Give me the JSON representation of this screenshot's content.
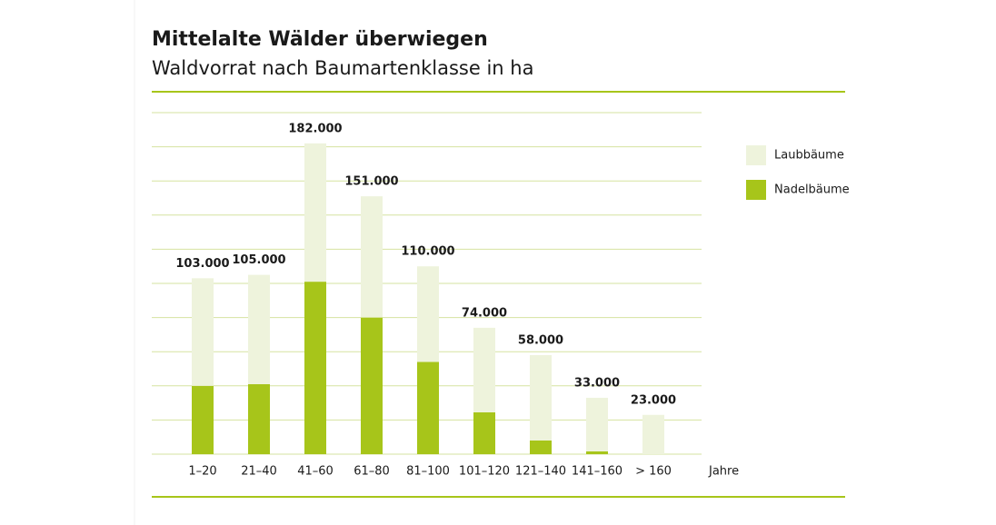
{
  "chart_data": {
    "type": "stacked_bar",
    "title": "Mittelalte Wälder überwiegen",
    "subtitle": "Waldvorrat nach Baumartenklasse in ha",
    "x_label": "Jahre",
    "categories": [
      "1–20",
      "21–40",
      "41–60",
      "61–80",
      "81–100",
      "101–120",
      "121–140",
      "141–160",
      "> 160"
    ],
    "series": [
      {
        "name": "Nadelbäume",
        "color": "#a7c51a",
        "values": [
          40000,
          41000,
          101000,
          80000,
          54000,
          24500,
          8000,
          1600,
          0
        ]
      },
      {
        "name": "Laubbäume",
        "color": "#eef3dc",
        "values": [
          63000,
          64000,
          81000,
          71000,
          56000,
          49500,
          50000,
          31400,
          23000
        ]
      }
    ],
    "totals": {
      "values": [
        103000,
        105000,
        182000,
        151000,
        110000,
        74000,
        58000,
        33000,
        23000
      ],
      "value_labels": [
        "103.000",
        "105.000",
        "182.000",
        "151.000",
        "110.000",
        "74.000",
        "58.000",
        "33.000",
        "23.000"
      ]
    },
    "ylim": [
      0,
      200000
    ],
    "yticks": [
      0,
      20000,
      40000,
      60000,
      80000,
      100000,
      120000,
      140000,
      160000,
      180000,
      200000
    ],
    "grid": true,
    "legend_order": [
      1,
      0
    ]
  }
}
